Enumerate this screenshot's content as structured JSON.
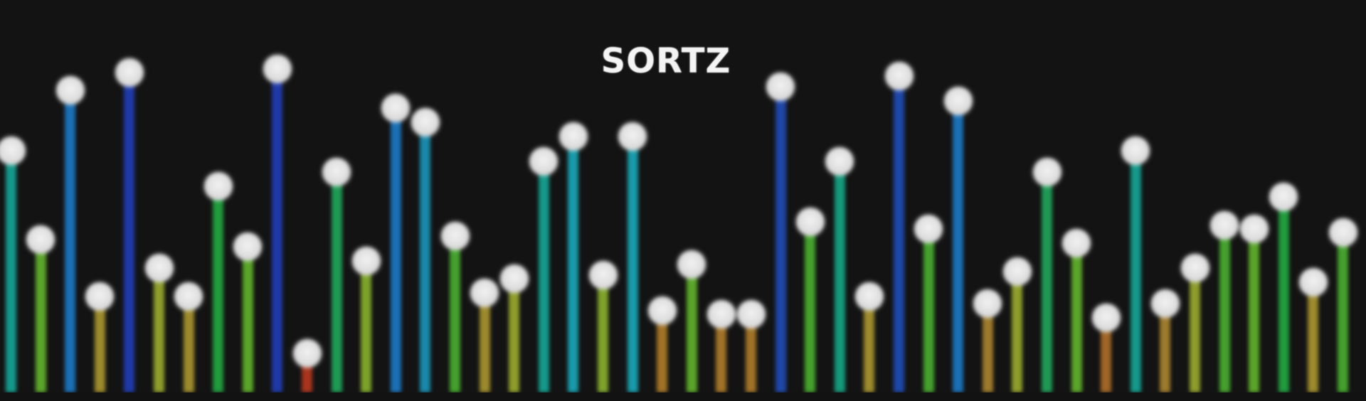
{
  "app": {
    "title": "SORTZ"
  },
  "colors": {
    "background": "#131313",
    "ball": "#e2e2e2"
  },
  "chart_data": {
    "type": "bar",
    "title": "SORTZ",
    "ylim": [
      0,
      100
    ],
    "values": [
      68,
      43,
      85,
      27,
      90,
      35,
      27,
      58,
      41,
      91,
      11,
      62,
      37,
      80,
      76,
      44,
      28,
      32,
      65,
      72,
      33,
      72,
      23,
      36,
      22,
      22,
      86,
      48,
      65,
      27,
      89,
      46,
      82,
      25,
      34,
      62,
      42,
      21,
      68,
      25,
      35,
      47,
      46,
      55,
      31,
      45
    ],
    "colors": [
      "#15988a",
      "#5ba52a",
      "#1c6fb5",
      "#9c8a2c",
      "#1f3aa8",
      "#8e9d2b",
      "#9c8a2c",
      "#229a3e",
      "#5ba52a",
      "#1f3aa8",
      "#a8341e",
      "#1f9a55",
      "#7ea32b",
      "#1c6fb5",
      "#1a88aa",
      "#44a12d",
      "#9c8a2c",
      "#8e9d2b",
      "#15988a",
      "#199aa8",
      "#7ea32b",
      "#199aa8",
      "#a07227",
      "#5ba52a",
      "#a07227",
      "#a07227",
      "#1f47a8",
      "#44a12d",
      "#16987a",
      "#9c8a2c",
      "#1f47a8",
      "#44a12d",
      "#1c6fb5",
      "#9c7a2c",
      "#8e9d2b",
      "#1f9a55",
      "#5ba52a",
      "#a06627",
      "#15988a",
      "#9c7a2c",
      "#8e9d2b",
      "#44a12d",
      "#5ba52a",
      "#229a3e",
      "#9c8a2c",
      "#44a12d"
    ]
  }
}
